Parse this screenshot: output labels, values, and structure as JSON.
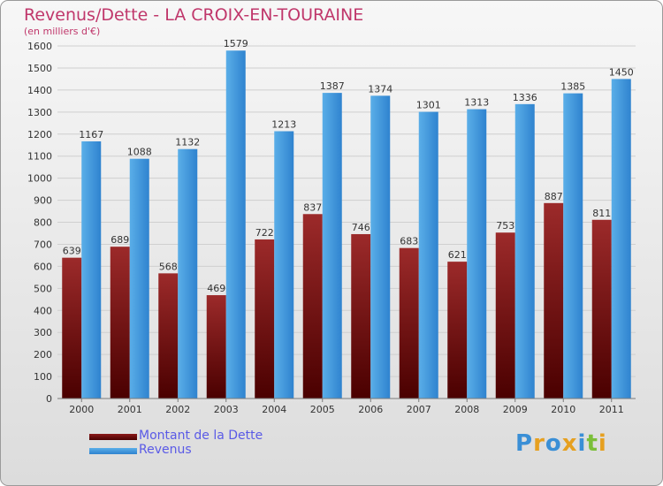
{
  "header": {
    "title": "Revenus/Dette - LA CROIX-EN-TOURAINE",
    "subtitle": "(en milliers d'€)"
  },
  "legend": {
    "items": [
      {
        "label": "Montant de la Dette",
        "color": "#6b0f0f"
      },
      {
        "label": "Revenus",
        "color": "#3d8fd9"
      }
    ]
  },
  "logo": {
    "letters": [
      {
        "ch": "P",
        "color": "#3a8fd6"
      },
      {
        "ch": "r",
        "color": "#e6a020"
      },
      {
        "ch": "o",
        "color": "#3a8fd6"
      },
      {
        "ch": "x",
        "color": "#e6a020"
      },
      {
        "ch": "i",
        "color": "#3a8fd6"
      },
      {
        "ch": "t",
        "color": "#7bbf3a"
      },
      {
        "ch": "i",
        "color": "#e6a020"
      }
    ]
  },
  "chart_data": {
    "type": "bar",
    "categories": [
      "2000",
      "2001",
      "2002",
      "2003",
      "2004",
      "2005",
      "2006",
      "2007",
      "2008",
      "2009",
      "2010",
      "2011"
    ],
    "series": [
      {
        "name": "Montant de la Dette",
        "values": [
          639,
          689,
          568,
          469,
          722,
          837,
          746,
          683,
          621,
          753,
          887,
          811
        ],
        "color": "#8b1a1a"
      },
      {
        "name": "Revenus",
        "values": [
          1167,
          1088,
          1132,
          1579,
          1213,
          1387,
          1374,
          1301,
          1313,
          1336,
          1385,
          1450
        ],
        "color": "#4a9ee0"
      }
    ],
    "ylim": [
      0,
      1600
    ],
    "yticks": [
      0,
      100,
      200,
      300,
      400,
      500,
      600,
      700,
      800,
      900,
      1000,
      1100,
      1200,
      1300,
      1400,
      1500,
      1600
    ],
    "grid": true,
    "legend_position": "bottom-left"
  }
}
